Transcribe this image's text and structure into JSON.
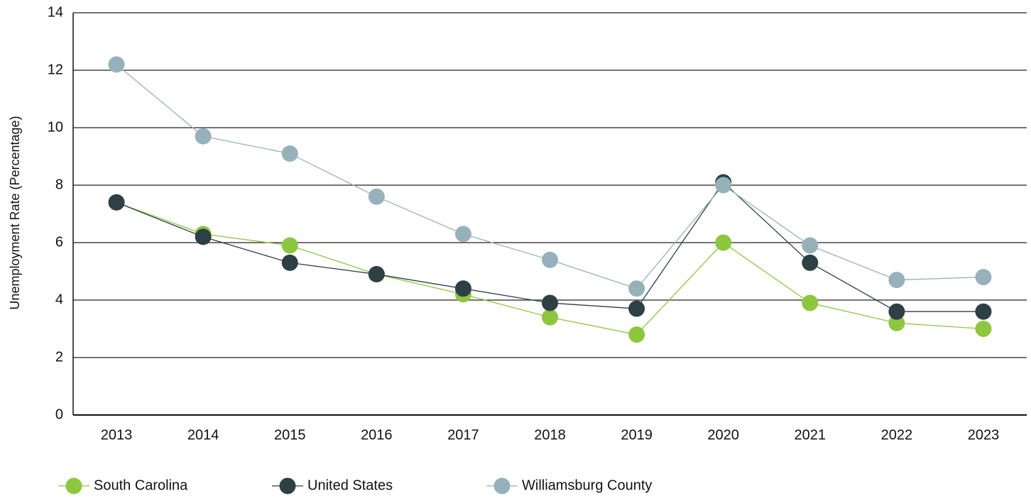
{
  "chart_data": {
    "type": "line",
    "y_label": "Unemployment Rate (Percentage)",
    "categories": [
      "2013",
      "2014",
      "2015",
      "2016",
      "2017",
      "2018",
      "2019",
      "2020",
      "2021",
      "2022",
      "2023"
    ],
    "series": [
      {
        "name": "South Carolina",
        "color": "#8dc63f",
        "values": [
          7.4,
          6.3,
          5.9,
          4.9,
          4.2,
          3.4,
          2.8,
          6.0,
          3.9,
          3.2,
          3.0
        ]
      },
      {
        "name": "United States",
        "color": "#2e3f45",
        "values": [
          7.4,
          6.2,
          5.3,
          4.9,
          4.4,
          3.9,
          3.7,
          8.1,
          5.3,
          3.6,
          3.6
        ]
      },
      {
        "name": "Williamsburg County",
        "color": "#97b1bb",
        "values": [
          12.2,
          9.7,
          9.1,
          7.6,
          6.3,
          5.4,
          4.4,
          8.0,
          5.9,
          4.7,
          4.8
        ]
      }
    ],
    "ylim": [
      0,
      14
    ],
    "yticks": [
      0,
      2,
      4,
      6,
      8,
      10,
      12,
      14
    ],
    "grid": true,
    "legend": "bottom"
  }
}
